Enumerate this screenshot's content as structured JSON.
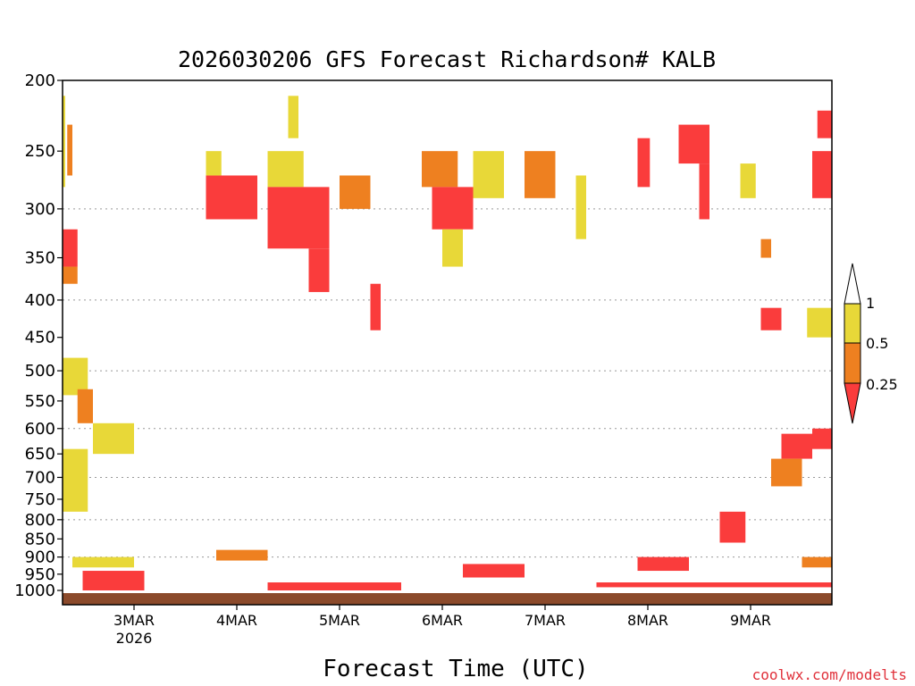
{
  "chart_data": {
    "type": "heatmap",
    "title": "2026030206 GFS Forecast Richardson# KALB",
    "xlabel": "Forecast Time (UTC)",
    "ylabel": "",
    "y_scale": "log-pressure",
    "ylim": [
      1000,
      200
    ],
    "y_ticks": [
      200,
      250,
      300,
      350,
      400,
      450,
      500,
      550,
      600,
      650,
      700,
      750,
      800,
      850,
      900,
      950,
      1000
    ],
    "y_gridlines": [
      300,
      400,
      500,
      600,
      700,
      800,
      900
    ],
    "x_tick_labels": [
      "3MAR",
      "4MAR",
      "5MAR",
      "6MAR",
      "7MAR",
      "8MAR",
      "9MAR"
    ],
    "x_sublabel": "2026",
    "colorbar": {
      "levels": [
        "1",
        "0.5",
        "0.25"
      ],
      "colors": {
        "gt1": "#ffffff",
        "b05_1": "#e8d838",
        "b025_05": "#ee8020",
        "lt025": "#fa3c3c"
      }
    },
    "ground_color": "#8b4a2b",
    "credit": "coolwx.com/modelts",
    "cells": [
      {
        "day": 2.25,
        "w": 0.08,
        "ptop": 210,
        "pbot": 280,
        "cls": "b05_1"
      },
      {
        "day": 2.35,
        "w": 0.05,
        "ptop": 230,
        "pbot": 270,
        "cls": "b025_05"
      },
      {
        "day": 2.25,
        "w": 0.2,
        "ptop": 320,
        "pbot": 360,
        "cls": "lt025"
      },
      {
        "day": 2.3,
        "w": 0.15,
        "ptop": 360,
        "pbot": 380,
        "cls": "b025_05"
      },
      {
        "day": 2.2,
        "w": 0.35,
        "ptop": 480,
        "pbot": 540,
        "cls": "b05_1"
      },
      {
        "day": 2.45,
        "w": 0.15,
        "ptop": 530,
        "pbot": 590,
        "cls": "b025_05"
      },
      {
        "day": 2.3,
        "w": 0.25,
        "ptop": 640,
        "pbot": 780,
        "cls": "b05_1"
      },
      {
        "day": 2.6,
        "w": 0.4,
        "ptop": 590,
        "pbot": 650,
        "cls": "b05_1"
      },
      {
        "day": 3.7,
        "w": 0.5,
        "ptop": 270,
        "pbot": 310,
        "cls": "lt025"
      },
      {
        "day": 3.7,
        "w": 0.15,
        "ptop": 250,
        "pbot": 270,
        "cls": "b05_1"
      },
      {
        "day": 4.3,
        "w": 0.35,
        "ptop": 250,
        "pbot": 280,
        "cls": "b05_1"
      },
      {
        "day": 4.3,
        "w": 0.6,
        "ptop": 280,
        "pbot": 340,
        "cls": "lt025"
      },
      {
        "day": 4.7,
        "w": 0.2,
        "ptop": 340,
        "pbot": 390,
        "cls": "lt025"
      },
      {
        "day": 4.5,
        "w": 0.1,
        "ptop": 210,
        "pbot": 240,
        "cls": "b05_1"
      },
      {
        "day": 5.0,
        "w": 0.3,
        "ptop": 270,
        "pbot": 300,
        "cls": "b025_05"
      },
      {
        "day": 5.3,
        "w": 0.1,
        "ptop": 380,
        "pbot": 440,
        "cls": "lt025"
      },
      {
        "day": 5.8,
        "w": 0.35,
        "ptop": 250,
        "pbot": 280,
        "cls": "b025_05"
      },
      {
        "day": 5.9,
        "w": 0.4,
        "ptop": 280,
        "pbot": 320,
        "cls": "lt025"
      },
      {
        "day": 6.0,
        "w": 0.2,
        "ptop": 320,
        "pbot": 360,
        "cls": "b05_1"
      },
      {
        "day": 6.3,
        "w": 0.3,
        "ptop": 250,
        "pbot": 290,
        "cls": "b05_1"
      },
      {
        "day": 6.8,
        "w": 0.3,
        "ptop": 250,
        "pbot": 290,
        "cls": "b025_05"
      },
      {
        "day": 7.3,
        "w": 0.1,
        "ptop": 270,
        "pbot": 330,
        "cls": "b05_1"
      },
      {
        "day": 7.9,
        "w": 0.12,
        "ptop": 240,
        "pbot": 280,
        "cls": "lt025"
      },
      {
        "day": 8.3,
        "w": 0.3,
        "ptop": 230,
        "pbot": 260,
        "cls": "lt025"
      },
      {
        "day": 8.5,
        "w": 0.1,
        "ptop": 260,
        "pbot": 310,
        "cls": "lt025"
      },
      {
        "day": 8.9,
        "w": 0.15,
        "ptop": 260,
        "pbot": 290,
        "cls": "b05_1"
      },
      {
        "day": 9.1,
        "w": 0.1,
        "ptop": 330,
        "pbot": 350,
        "cls": "b025_05"
      },
      {
        "day": 9.65,
        "w": 0.2,
        "ptop": 220,
        "pbot": 240,
        "cls": "lt025"
      },
      {
        "day": 9.6,
        "w": 0.2,
        "ptop": 250,
        "pbot": 290,
        "cls": "lt025"
      },
      {
        "day": 9.55,
        "w": 0.25,
        "ptop": 410,
        "pbot": 450,
        "cls": "b05_1"
      },
      {
        "day": 9.1,
        "w": 0.2,
        "ptop": 410,
        "pbot": 440,
        "cls": "lt025"
      },
      {
        "day": 9.3,
        "w": 0.3,
        "ptop": 610,
        "pbot": 660,
        "cls": "lt025"
      },
      {
        "day": 9.6,
        "w": 0.3,
        "ptop": 600,
        "pbot": 640,
        "cls": "lt025"
      },
      {
        "day": 9.2,
        "w": 0.3,
        "ptop": 660,
        "pbot": 720,
        "cls": "b025_05"
      },
      {
        "day": 8.7,
        "w": 0.25,
        "ptop": 780,
        "pbot": 860,
        "cls": "lt025"
      },
      {
        "day": 6.2,
        "w": 0.6,
        "ptop": 920,
        "pbot": 960,
        "cls": "lt025"
      },
      {
        "day": 7.9,
        "w": 0.5,
        "ptop": 900,
        "pbot": 940,
        "cls": "lt025"
      },
      {
        "day": 9.5,
        "w": 0.6,
        "ptop": 900,
        "pbot": 930,
        "cls": "b025_05"
      },
      {
        "day": 2.5,
        "w": 0.6,
        "ptop": 940,
        "pbot": 1000,
        "cls": "lt025"
      },
      {
        "day": 2.4,
        "w": 0.6,
        "ptop": 900,
        "pbot": 930,
        "cls": "b05_1"
      },
      {
        "day": 4.3,
        "w": 1.3,
        "ptop": 975,
        "pbot": 1000,
        "cls": "lt025"
      },
      {
        "day": 3.8,
        "w": 0.5,
        "ptop": 880,
        "pbot": 910,
        "cls": "b025_05"
      },
      {
        "day": 7.5,
        "w": 2.5,
        "ptop": 975,
        "pbot": 990,
        "cls": "lt025"
      }
    ]
  }
}
